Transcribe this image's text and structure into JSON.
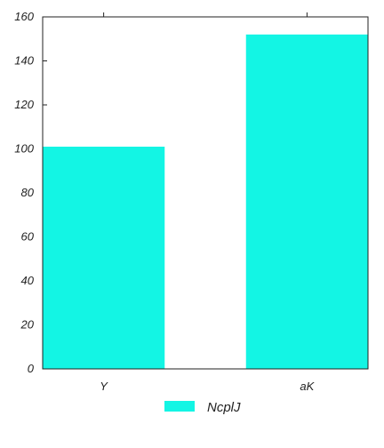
{
  "chart_data": {
    "type": "bar",
    "categories": [
      "Y",
      "aK"
    ],
    "series": [
      {
        "name": "NcplJ",
        "values": [
          101,
          152
        ],
        "color": "#13f5e4"
      }
    ],
    "title": "",
    "xlabel": "",
    "ylabel": "",
    "ylim": [
      0,
      160
    ],
    "yticks": [
      0,
      20,
      40,
      60,
      80,
      100,
      120,
      140,
      160
    ],
    "grid": false,
    "legend": "bottom-center"
  }
}
